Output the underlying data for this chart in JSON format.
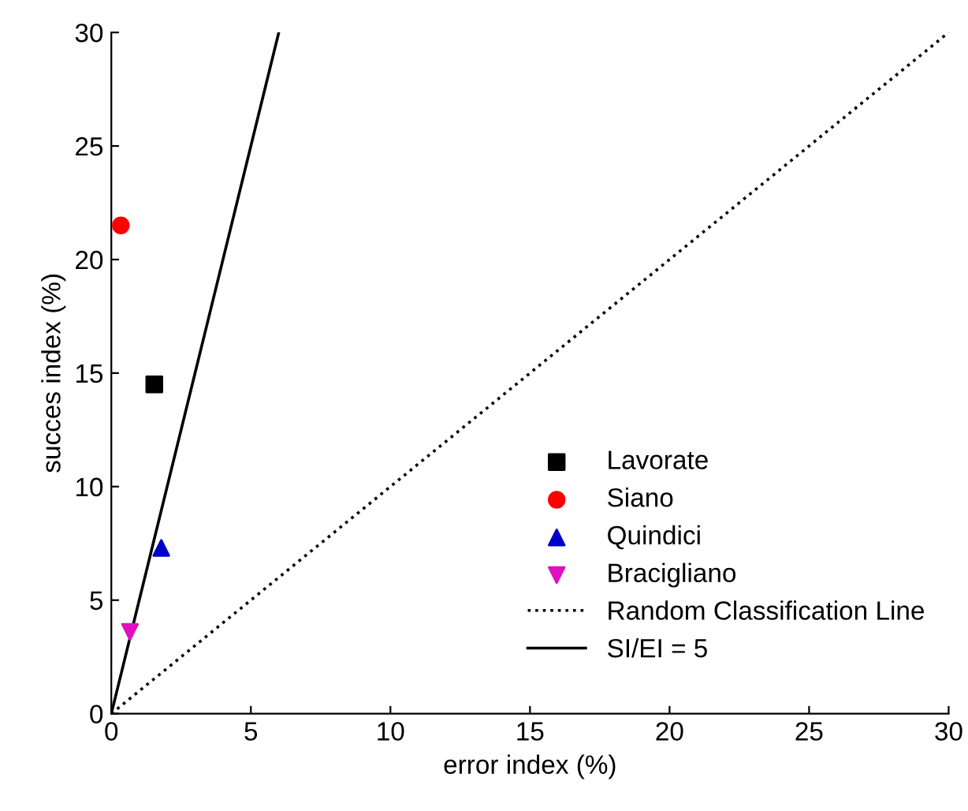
{
  "chart_data": {
    "type": "scatter",
    "xlabel": "error index (%)",
    "ylabel": "succes index (%)",
    "xlim": [
      0,
      30
    ],
    "ylim": [
      0,
      30
    ],
    "xticks": [
      0,
      5,
      10,
      15,
      20,
      25,
      30
    ],
    "yticks": [
      0,
      5,
      10,
      15,
      20,
      25,
      30
    ],
    "grid": false,
    "legend": "bottom right",
    "series": [
      {
        "name": "Lavorate",
        "color": "#000000",
        "marker": "square",
        "x": [
          1.54
        ],
        "values": [
          14.5
        ]
      },
      {
        "name": "Siano",
        "color": "#ff0000",
        "marker": "circle",
        "x": [
          0.34
        ],
        "values": [
          21.5
        ]
      },
      {
        "name": "Quindici",
        "color": "#0000cc",
        "marker": "triangle",
        "x": [
          1.79
        ],
        "values": [
          7.3
        ]
      },
      {
        "name": "Bracigliano",
        "color": "#e010c0",
        "marker": "triangle_down",
        "x": [
          0.67
        ],
        "values": [
          3.6
        ]
      },
      {
        "name": "Random Classification Line",
        "type": "line",
        "color": "#000000",
        "line_style": "dotted",
        "marker": "none",
        "x": [
          0,
          30
        ],
        "values": [
          0,
          30
        ]
      },
      {
        "name": "SI/EI = 5",
        "type": "line",
        "color": "#000000",
        "line_style": "solid",
        "marker": "none",
        "x": [
          0,
          6
        ],
        "values": [
          0,
          30
        ]
      }
    ]
  }
}
